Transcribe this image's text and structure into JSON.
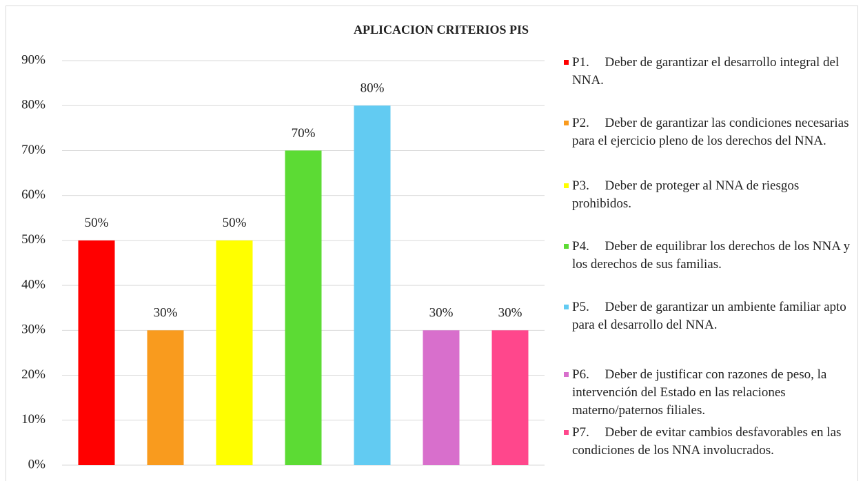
{
  "chart_data": {
    "type": "bar",
    "title": "APLICACION CRITERIOS PIS",
    "categories": [
      null
    ],
    "series": [
      {
        "name": "P1.\tDeber de garantizar el desarrollo integral del NNA.",
        "color": "#ff0000",
        "values": [
          50
        ],
        "value_labels": [
          "50%"
        ]
      },
      {
        "name": "P2.\tDeber de garantizar las condiciones necesarias para el ejercicio pleno de los derechos del NNA.",
        "color": "#f99b1e",
        "values": [
          30
        ],
        "value_labels": [
          "30%"
        ]
      },
      {
        "name": "P3.\tDeber de proteger al NNA de riesgos prohibidos.",
        "color": "#ffff00",
        "values": [
          50
        ],
        "value_labels": [
          "50%"
        ]
      },
      {
        "name": "P4.\tDeber de equilibrar los derechos de los NNA y los derechos de sus familias.",
        "color": "#5cdb34",
        "values": [
          70
        ],
        "value_labels": [
          "70%"
        ]
      },
      {
        "name": "P5.\tDeber de garantizar un ambiente familiar apto para el desarrollo del NNA.",
        "color": "#62cbf2",
        "values": [
          80
        ],
        "value_labels": [
          "80%"
        ]
      },
      {
        "name": "P6.\tDeber de justificar con razones de peso, la intervención del Estado en las relaciones materno/paternos filiales.",
        "color": "#d86fcc",
        "values": [
          30
        ],
        "value_labels": [
          "30%"
        ]
      },
      {
        "name": "P7.\tDeber de evitar cambios desfavorables en las condiciones de los NNA involucrados.",
        "color": "#ff478c",
        "values": [
          30
        ],
        "value_labels": [
          "30%"
        ]
      }
    ],
    "ylim": [
      0,
      90
    ],
    "yticks": [
      {
        "value": 0,
        "label": "0%"
      },
      {
        "value": 10,
        "label": "10%"
      },
      {
        "value": 20,
        "label": "20%"
      },
      {
        "value": 30,
        "label": "30%"
      },
      {
        "value": 40,
        "label": "40%"
      },
      {
        "value": 50,
        "label": "50%"
      },
      {
        "value": 60,
        "label": "60%"
      },
      {
        "value": 70,
        "label": "70%"
      },
      {
        "value": 80,
        "label": "80%"
      },
      {
        "value": 90,
        "label": "90%"
      }
    ],
    "grid": true,
    "legend": "right"
  }
}
